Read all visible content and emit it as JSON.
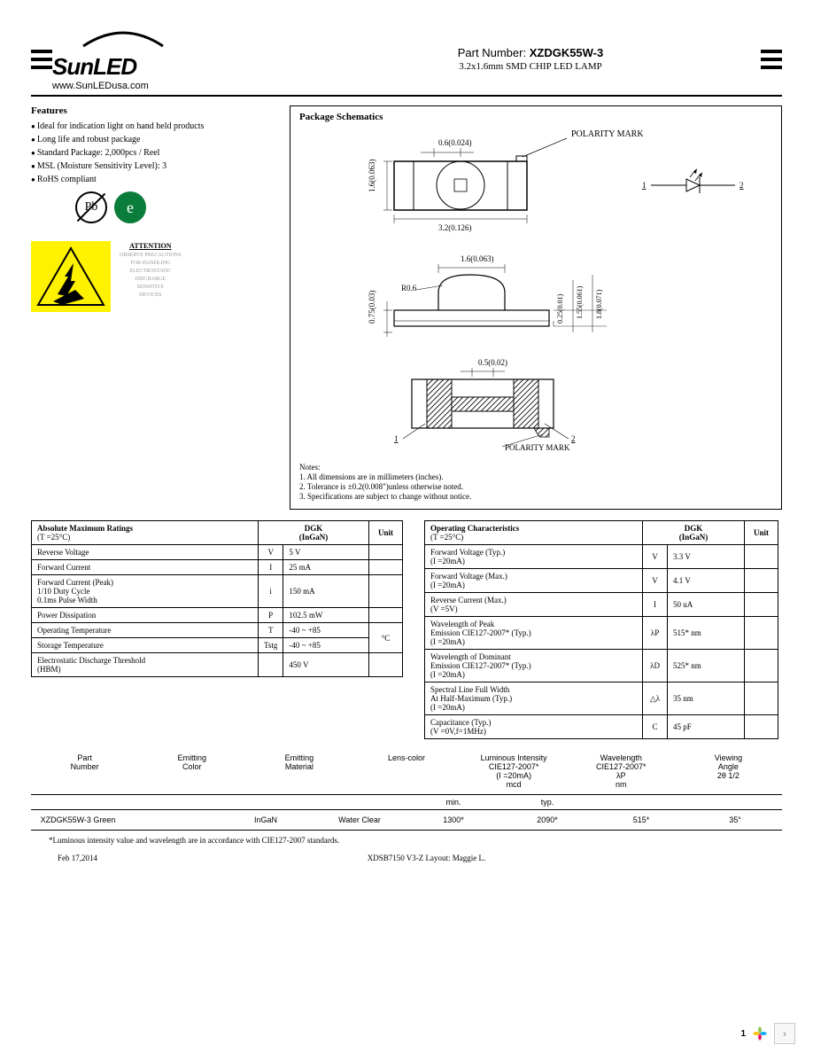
{
  "header": {
    "logo_top": "SunLED",
    "logo_url": "www.SunLEDusa.com",
    "part_label": "Part Number:",
    "part_number": "XZDGK55W-3",
    "part_desc": "3.2x1.6mm SMD CHIP LED LAMP"
  },
  "features": {
    "title": "Features",
    "items": [
      "Ideal for indication light on hand held products",
      "Long life and robust package",
      "Standard Package: 2,000pcs / Reel",
      "MSL (Moisture Sensitivity Level): 3",
      "RoHS compliant"
    ],
    "pb_label": "Pb",
    "green_label": "e"
  },
  "esd": {
    "title": "ATTENTION",
    "lines": [
      "OBSERVE PRECAUTIONS",
      "FOR HANDLING",
      "ELECTROSTATIC",
      "DISCHARGE",
      "SENSITIVE",
      "DEVICES"
    ]
  },
  "schematic": {
    "title": "Package Schematics",
    "polarity": "POLARITY  MARK",
    "dims": {
      "w_top": "0.6(0.024)",
      "h_left": "1.6(0.063)",
      "w_bottom": "3.2(0.126)",
      "side_top": "1.6(0.063)",
      "side_r": "R0.6",
      "side_h1": "0.75(0.03)",
      "side_h2": "0.25(0.01)",
      "side_h3": "1.55(0.061)",
      "side_h4": "1.8(0.071)",
      "bot_w": "0.5(0.02)",
      "pin1": "1",
      "pin2": "2"
    },
    "notes_title": "Notes:",
    "notes": [
      "1. All dimensions are in millimeters (inches).",
      "2. Tolerance is ±0.2(0.008\")unless otherwise noted.",
      "3. Specifications are subject to change without notice."
    ]
  },
  "amr": {
    "title": "Absolute Maximum Ratings",
    "cond": "(T  =25°C)",
    "col2": "DGK\n(InGaN)",
    "col3": "Unit",
    "rows": [
      {
        "label": "Reverse Voltage",
        "sym": "V",
        "val": "5 V",
        "unit": ""
      },
      {
        "label": "Forward Current",
        "sym": "I",
        "val": "25 mA",
        "unit": ""
      },
      {
        "label": "Forward Current (Peak)\n1/10 Duty Cycle\n0.1ms Pulse Width",
        "sym": "i",
        "val": "150 mA",
        "unit": ""
      },
      {
        "label": "Power Dissipation",
        "sym": "P",
        "val": "102.5 mW",
        "unit": ""
      },
      {
        "label": "Operating Temperature",
        "sym": "T",
        "val": "-40 ~ +85",
        "unit": "°C"
      },
      {
        "label": "Storage Temperature",
        "sym": "Tstg",
        "val": "-40 ~ +85",
        "unit": ""
      },
      {
        "label": "Electrostatic Discharge Threshold\n(HBM)",
        "sym": "",
        "val": "450 V",
        "unit": ""
      }
    ]
  },
  "opc": {
    "title": "Operating Characteristics",
    "cond": "(T  =25°C)",
    "col2": "DGK\n(InGaN)",
    "col3": "Unit",
    "rows": [
      {
        "label": "Forward Voltage (Typ.)\n(I  =20mA)",
        "sym": "V",
        "val": "3.3 V"
      },
      {
        "label": "Forward Voltage (Max.)\n(I  =20mA)",
        "sym": "V",
        "val": "4.1 V"
      },
      {
        "label": "Reverse Current (Max.)\n(V  =5V)",
        "sym": "I",
        "val": "50 uA"
      },
      {
        "label": "Wavelength of Peak\nEmission CIE127-2007* (Typ.)\n(I  =20mA)",
        "sym": "λP",
        "val": "515* nm"
      },
      {
        "label": "Wavelength of Dominant\nEmission CIE127-2007* (Typ.)\n(I  =20mA)",
        "sym": "λD",
        "val": "525* nm"
      },
      {
        "label": "Spectral Line Full Width\nAt Half-Maximum (Typ.)\n(I  =20mA)",
        "sym": "△λ",
        "val": "35 nm"
      },
      {
        "label": "Capacitance (Typ.)\n(V  =0V,f=1MHz)",
        "sym": "C",
        "val": "45 pF"
      }
    ]
  },
  "bottom": {
    "headers": [
      "Part\nNumber",
      "Emitting\nColor",
      "Emitting\nMaterial",
      "Lens-color",
      "Luminous Intensity\nCIE127-2007*\n(I  =20mA)\nmcd",
      "Wavelength\nCIE127-2007*\nλP\nnm",
      "Viewing\nAngle\n2θ 1/2"
    ],
    "sub": [
      "",
      "",
      "",
      "",
      "min.",
      "typ.",
      "",
      ""
    ],
    "row": [
      "XZDGK55W-3",
      "Green",
      "InGaN",
      "Water    Clear",
      "1300*",
      "2090*",
      "515*",
      "35°"
    ]
  },
  "footnote": "*Luminous intensity value and wavelength are in accordance with CIE127-2007 standards.",
  "footer": {
    "date": "Feb 17,2014",
    "code": "XDSB7150    V3-Z    Layout: Maggie L."
  }
}
